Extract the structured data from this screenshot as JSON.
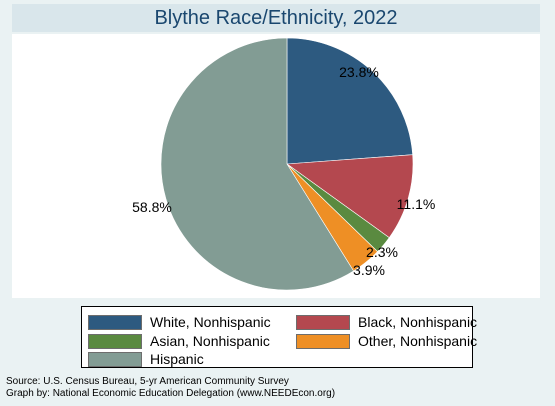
{
  "chart_data": {
    "type": "pie",
    "title": "Blythe Race/Ethnicity, 2022",
    "categories": [
      "White, Nonhispanic",
      "Black, Nonhispanic",
      "Asian, Nonhispanic",
      "Other, Nonhispanic",
      "Hispanic"
    ],
    "values": [
      23.8,
      11.1,
      2.3,
      3.9,
      58.8
    ],
    "labels": [
      "23.8%",
      "11.1%",
      "2.3%",
      "3.9%",
      "58.8%"
    ],
    "colors": [
      "#2d5a80",
      "#b4484f",
      "#5a8a40",
      "#ee8f25",
      "#829c94"
    ],
    "legend_position": "bottom",
    "start_angle": "12 o'clock, clockwise"
  },
  "notes": {
    "source": "Source:  U.S. Census Bureau, 5-yr American Community Survey",
    "graph_by": "Graph by: National Economic Education Delegation (www.NEEDEcon.org)"
  }
}
